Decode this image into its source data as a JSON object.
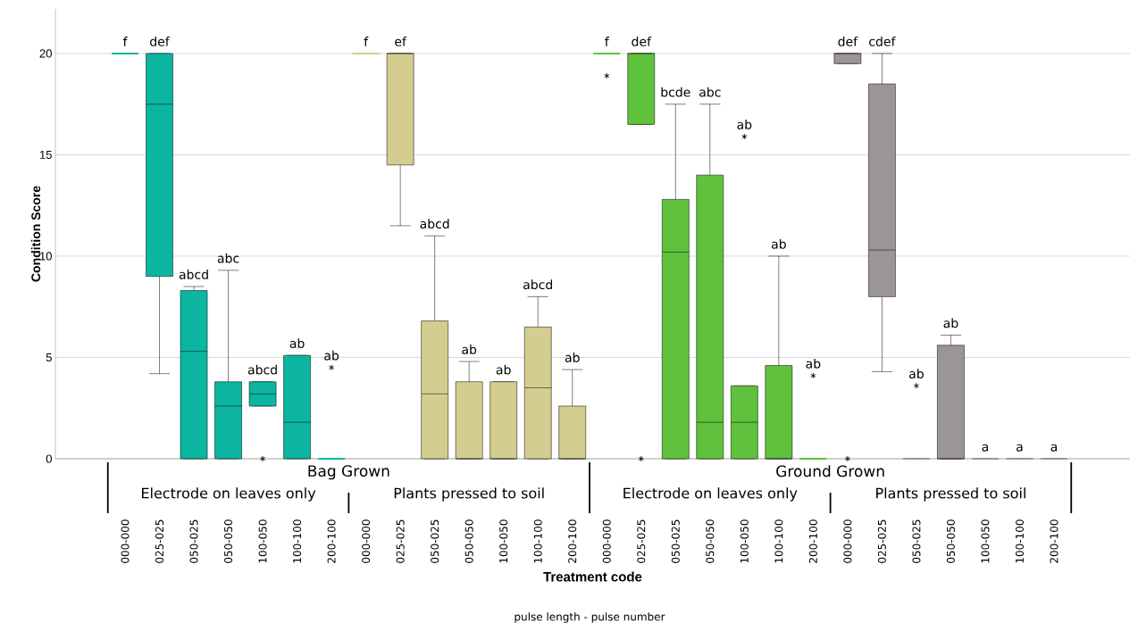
{
  "chart_data": {
    "type": "box",
    "xlabel": "Treatment code",
    "ylabel": "Condition Score",
    "categories": [
      "000-000",
      "025-025",
      "050-025",
      "050-050",
      "100-050",
      "100-100",
      "200-100",
      "000-000",
      "025-025",
      "050-025",
      "050-050",
      "100-050",
      "100-100",
      "200-100",
      "000-000",
      "025-025",
      "050-025",
      "050-050",
      "100-050",
      "100-100",
      "200-100",
      "000-000",
      "025-025",
      "050-025",
      "050-050",
      "100-050",
      "100-100",
      "200-100"
    ],
    "ylim": [
      0,
      22.2
    ],
    "yticks": [
      0,
      5,
      10,
      15,
      20
    ],
    "grid": "y",
    "annotations": [
      "Bag Grown",
      "Ground Grown",
      "Electrode on leaves only",
      "Plants pressed to soil",
      "Electrode on leaves only",
      "Plants pressed to soil",
      "pulse length - pulse number"
    ],
    "series": [
      {
        "color": "#0bb5a0",
        "boxes": [
          {
            "low": 20,
            "q1": 20,
            "median": 20,
            "q3": 20,
            "high": 20
          },
          {
            "low": 4.2,
            "q1": 9,
            "median": 17.5,
            "q3": 20,
            "high": 20
          },
          {
            "low": 0,
            "q1": 0,
            "median": 5.3,
            "q3": 8.3,
            "high": 8.5
          },
          {
            "low": 0,
            "q1": 0,
            "median": 2.6,
            "q3": 3.8,
            "high": 9.3
          },
          {
            "low": 2.6,
            "q1": 2.6,
            "median": 3.2,
            "q3": 3.8,
            "high": 3.8,
            "outliers": [
              0
            ]
          },
          {
            "low": 0,
            "q1": 0,
            "median": 1.8,
            "q3": 5.1,
            "high": 5.1
          },
          {
            "low": 0,
            "q1": 0,
            "median": 0,
            "q3": 0,
            "high": 0,
            "outliers": [
              4.5
            ]
          },
          null,
          null,
          null,
          null,
          null,
          null,
          null,
          null,
          null,
          null,
          null,
          null,
          null,
          null,
          null,
          null,
          null,
          null,
          null,
          null,
          null
        ],
        "value_labels": [
          "f",
          "def",
          "abcd",
          "abc",
          "abcd",
          "ab",
          "ab",
          null,
          null,
          null,
          null,
          null,
          null,
          null,
          null,
          null,
          null,
          null,
          null,
          null,
          null,
          null,
          null,
          null,
          null,
          null,
          null,
          null
        ]
      },
      {
        "color": "#d3cd8f",
        "boxes": [
          null,
          null,
          null,
          null,
          null,
          null,
          null,
          {
            "low": 20,
            "q1": 20,
            "median": 20,
            "q3": 20,
            "high": 20
          },
          {
            "low": 11.5,
            "q1": 14.5,
            "median": 20,
            "q3": 20,
            "high": 20
          },
          {
            "low": 0,
            "q1": 0,
            "median": 3.2,
            "q3": 6.8,
            "high": 11.0
          },
          {
            "low": 0,
            "q1": 0,
            "median": 0,
            "q3": 3.8,
            "high": 4.8
          },
          {
            "low": 0,
            "q1": 0,
            "median": 0,
            "q3": 3.8,
            "high": 3.8
          },
          {
            "low": 0,
            "q1": 0,
            "median": 3.5,
            "q3": 6.5,
            "high": 8.0
          },
          {
            "low": 0,
            "q1": 0,
            "median": 0,
            "q3": 2.6,
            "high": 4.4
          },
          null,
          null,
          null,
          null,
          null,
          null,
          null,
          null,
          null,
          null,
          null,
          null,
          null,
          null
        ],
        "value_labels": [
          null,
          null,
          null,
          null,
          null,
          null,
          null,
          "f",
          "ef",
          "abcd",
          "ab",
          "ab",
          "abcd",
          "ab",
          null,
          null,
          null,
          null,
          null,
          null,
          null,
          null,
          null,
          null,
          null,
          null,
          null,
          null
        ]
      },
      {
        "color": "#5fc13c",
        "boxes": [
          null,
          null,
          null,
          null,
          null,
          null,
          null,
          null,
          null,
          null,
          null,
          null,
          null,
          null,
          {
            "low": 20,
            "q1": 20,
            "median": 20,
            "q3": 20,
            "high": 20,
            "outliers": [
              18.9
            ]
          },
          {
            "low": 16.5,
            "q1": 16.5,
            "median": 20,
            "q3": 20,
            "high": 20,
            "outliers": [
              0
            ]
          },
          {
            "low": 0,
            "q1": 0,
            "median": 10.2,
            "q3": 12.8,
            "high": 17.5
          },
          {
            "low": 0,
            "q1": 0,
            "median": 1.8,
            "q3": 14.0,
            "high": 17.5
          },
          {
            "low": 0,
            "q1": 0,
            "median": 1.8,
            "q3": 3.6,
            "high": 3.6,
            "outliers": [
              15.9
            ]
          },
          {
            "low": 0,
            "q1": 0,
            "median": 0,
            "q3": 4.6,
            "high": 10.0
          },
          {
            "low": 0,
            "q1": 0,
            "median": 0,
            "q3": 0,
            "high": 0,
            "outliers": [
              4.1
            ]
          },
          null,
          null,
          null,
          null,
          null,
          null,
          null
        ],
        "value_labels": [
          null,
          null,
          null,
          null,
          null,
          null,
          null,
          null,
          null,
          null,
          null,
          null,
          null,
          null,
          "f",
          "def",
          "bcde",
          "abc",
          "ab",
          "ab",
          "ab",
          null,
          null,
          null,
          null,
          null,
          null,
          null
        ]
      },
      {
        "color": "#9b9597",
        "boxes": [
          null,
          null,
          null,
          null,
          null,
          null,
          null,
          null,
          null,
          null,
          null,
          null,
          null,
          null,
          null,
          null,
          null,
          null,
          null,
          null,
          null,
          {
            "low": 19.5,
            "q1": 19.5,
            "median": 20,
            "q3": 20,
            "high": 20,
            "outliers": [
              0
            ]
          },
          {
            "low": 4.3,
            "q1": 8.0,
            "median": 10.3,
            "q3": 18.5,
            "high": 20
          },
          {
            "low": 0,
            "q1": 0,
            "median": 0,
            "q3": 0,
            "high": 0,
            "outliers": [
              3.6
            ]
          },
          {
            "low": 0,
            "q1": 0,
            "median": 0,
            "q3": 5.6,
            "high": 6.1
          },
          {
            "low": 0,
            "q1": 0,
            "median": 0,
            "q3": 0,
            "high": 0
          },
          {
            "low": 0,
            "q1": 0,
            "median": 0,
            "q3": 0,
            "high": 0
          },
          {
            "low": 0,
            "q1": 0,
            "median": 0,
            "q3": 0,
            "high": 0
          }
        ],
        "value_labels": [
          null,
          null,
          null,
          null,
          null,
          null,
          null,
          null,
          null,
          null,
          null,
          null,
          null,
          null,
          null,
          null,
          null,
          null,
          null,
          null,
          null,
          "def",
          "cdef",
          "ab",
          "ab",
          "a",
          "a",
          "a"
        ]
      }
    ]
  }
}
